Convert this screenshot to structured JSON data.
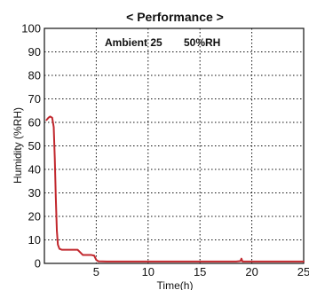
{
  "chart_data": {
    "type": "line",
    "title": "< Performance >",
    "xlabel": "Time(h)",
    "ylabel": "Humidity (%RH)",
    "xlim": [
      0,
      25
    ],
    "ylim": [
      0,
      100
    ],
    "x_ticks": [
      5,
      10,
      15,
      20,
      25
    ],
    "y_ticks": [
      0,
      10,
      20,
      30,
      40,
      50,
      60,
      70,
      80,
      90,
      100
    ],
    "grid": true,
    "annotations": [
      "Ambient 25",
      "50%RH"
    ],
    "series": [
      {
        "color": "#c1272d",
        "points": [
          [
            0.2,
            61
          ],
          [
            0.4,
            62
          ],
          [
            0.55,
            62.5
          ],
          [
            0.75,
            62
          ],
          [
            0.9,
            58
          ],
          [
            1.0,
            45
          ],
          [
            1.1,
            28
          ],
          [
            1.2,
            14
          ],
          [
            1.3,
            8
          ],
          [
            1.45,
            6.2
          ],
          [
            1.7,
            5.8
          ],
          [
            2.5,
            5.8
          ],
          [
            3.2,
            5.8
          ],
          [
            3.5,
            4.5
          ],
          [
            3.7,
            3.6
          ],
          [
            4.5,
            3.6
          ],
          [
            4.8,
            3.3
          ],
          [
            5.0,
            1.5
          ],
          [
            5.2,
            0.9
          ],
          [
            6.0,
            0.8
          ],
          [
            10.0,
            0.8
          ],
          [
            15.0,
            0.8
          ],
          [
            18.5,
            0.8
          ],
          [
            18.9,
            1.0
          ],
          [
            19.0,
            2.0
          ],
          [
            19.1,
            0.8
          ],
          [
            19.4,
            0.8
          ],
          [
            22.0,
            0.8
          ],
          [
            25.0,
            0.8
          ]
        ]
      }
    ]
  }
}
